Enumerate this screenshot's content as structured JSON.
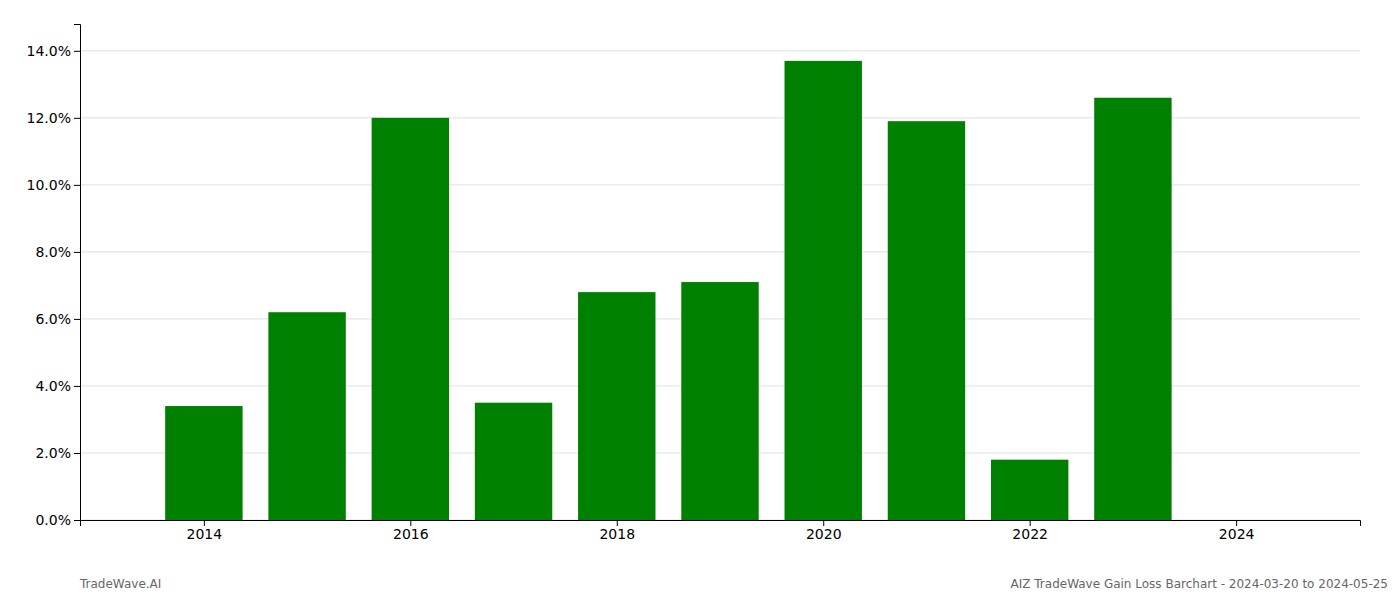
{
  "chart_data": {
    "type": "bar",
    "x": [
      2014,
      2015,
      2016,
      2017,
      2018,
      2019,
      2020,
      2021,
      2022,
      2023
    ],
    "values": [
      0.034,
      0.062,
      0.12,
      0.035,
      0.068,
      0.071,
      0.137,
      0.119,
      0.018,
      0.126
    ],
    "color": "#008000",
    "xlim": [
      2012.8,
      2025.2
    ],
    "xticks": [
      2014,
      2016,
      2018,
      2020,
      2022,
      2024
    ],
    "ylim": [
      0,
      0.148
    ],
    "yticks": [
      {
        "value": 0.0,
        "label": "0.0%"
      },
      {
        "value": 0.02,
        "label": "2.0%"
      },
      {
        "value": 0.04,
        "label": "4.0%"
      },
      {
        "value": 0.06,
        "label": "6.0%"
      },
      {
        "value": 0.08,
        "label": "8.0%"
      },
      {
        "value": 0.1,
        "label": "10.0%"
      },
      {
        "value": 0.12,
        "label": "12.0%"
      },
      {
        "value": 0.14,
        "label": "14.0%"
      }
    ],
    "grid": true,
    "annotations": [
      "TradeWave.AI",
      "AIZ TradeWave Gain Loss Barchart - 2024-03-20 to 2024-05-25"
    ]
  }
}
